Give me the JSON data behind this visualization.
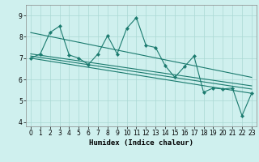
{
  "xlabel": "Humidex (Indice chaleur)",
  "bg_color": "#cff0ee",
  "grid_color": "#aad8d4",
  "line_color": "#1a7a6e",
  "xlim": [
    -0.5,
    23.5
  ],
  "ylim": [
    3.8,
    9.5
  ],
  "xticks": [
    0,
    1,
    2,
    3,
    4,
    5,
    6,
    7,
    8,
    9,
    10,
    11,
    12,
    13,
    14,
    15,
    16,
    17,
    18,
    19,
    20,
    21,
    22,
    23
  ],
  "yticks": [
    4,
    5,
    6,
    7,
    8,
    9
  ],
  "series1_x": [
    0,
    1,
    2,
    3,
    4,
    5,
    6,
    7,
    8,
    9,
    10,
    11,
    12,
    13,
    14,
    15,
    16,
    17,
    18,
    19,
    20,
    21,
    22,
    23
  ],
  "series1_y": [
    7.0,
    7.2,
    8.2,
    8.5,
    7.15,
    7.0,
    6.7,
    7.2,
    8.05,
    7.2,
    8.4,
    8.9,
    7.6,
    7.5,
    6.65,
    6.1,
    6.6,
    7.1,
    5.4,
    5.6,
    5.55,
    5.6,
    4.3,
    5.35
  ],
  "trend_lines": [
    {
      "x0": 0,
      "y0": 7.0,
      "x1": 23,
      "y1": 5.35
    },
    {
      "x0": 0,
      "y0": 7.1,
      "x1": 23,
      "y1": 5.55
    },
    {
      "x0": 0,
      "y0": 7.2,
      "x1": 23,
      "y1": 5.7
    },
    {
      "x0": 0,
      "y0": 8.2,
      "x1": 23,
      "y1": 6.1
    }
  ]
}
